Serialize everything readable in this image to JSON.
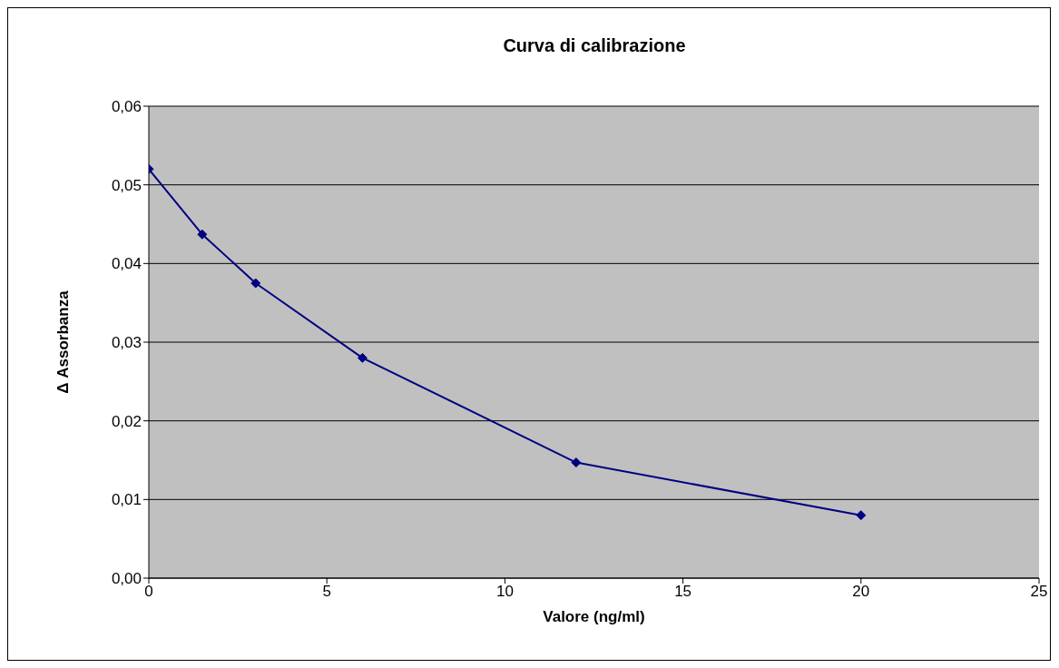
{
  "chart_data": {
    "type": "line",
    "title": "Curva di calibrazione",
    "xlabel": "Valore (ng/ml)",
    "ylabel": "Δ Assorbanza",
    "x": [
      0,
      1.5,
      3,
      6,
      12,
      20
    ],
    "series": [
      {
        "color": "#000080",
        "values": [
          0.052,
          0.0437,
          0.0375,
          0.028,
          0.0147,
          0.008
        ]
      }
    ],
    "xlim": [
      0,
      25
    ],
    "xticks": [
      0,
      5,
      10,
      15,
      20,
      25
    ],
    "ylim": [
      0,
      0.06
    ],
    "yticks": [
      {
        "value": 0,
        "label": "0,00"
      },
      {
        "value": 0.01,
        "label": "0,01"
      },
      {
        "value": 0.02,
        "label": "0,02"
      },
      {
        "value": 0.03,
        "label": "0,03"
      },
      {
        "value": 0.04,
        "label": "0,04"
      },
      {
        "value": 0.05,
        "label": "0,05"
      },
      {
        "value": 0.06,
        "label": "0,06"
      }
    ],
    "grid": "y",
    "marker": "diamond",
    "line_style": "solid"
  }
}
